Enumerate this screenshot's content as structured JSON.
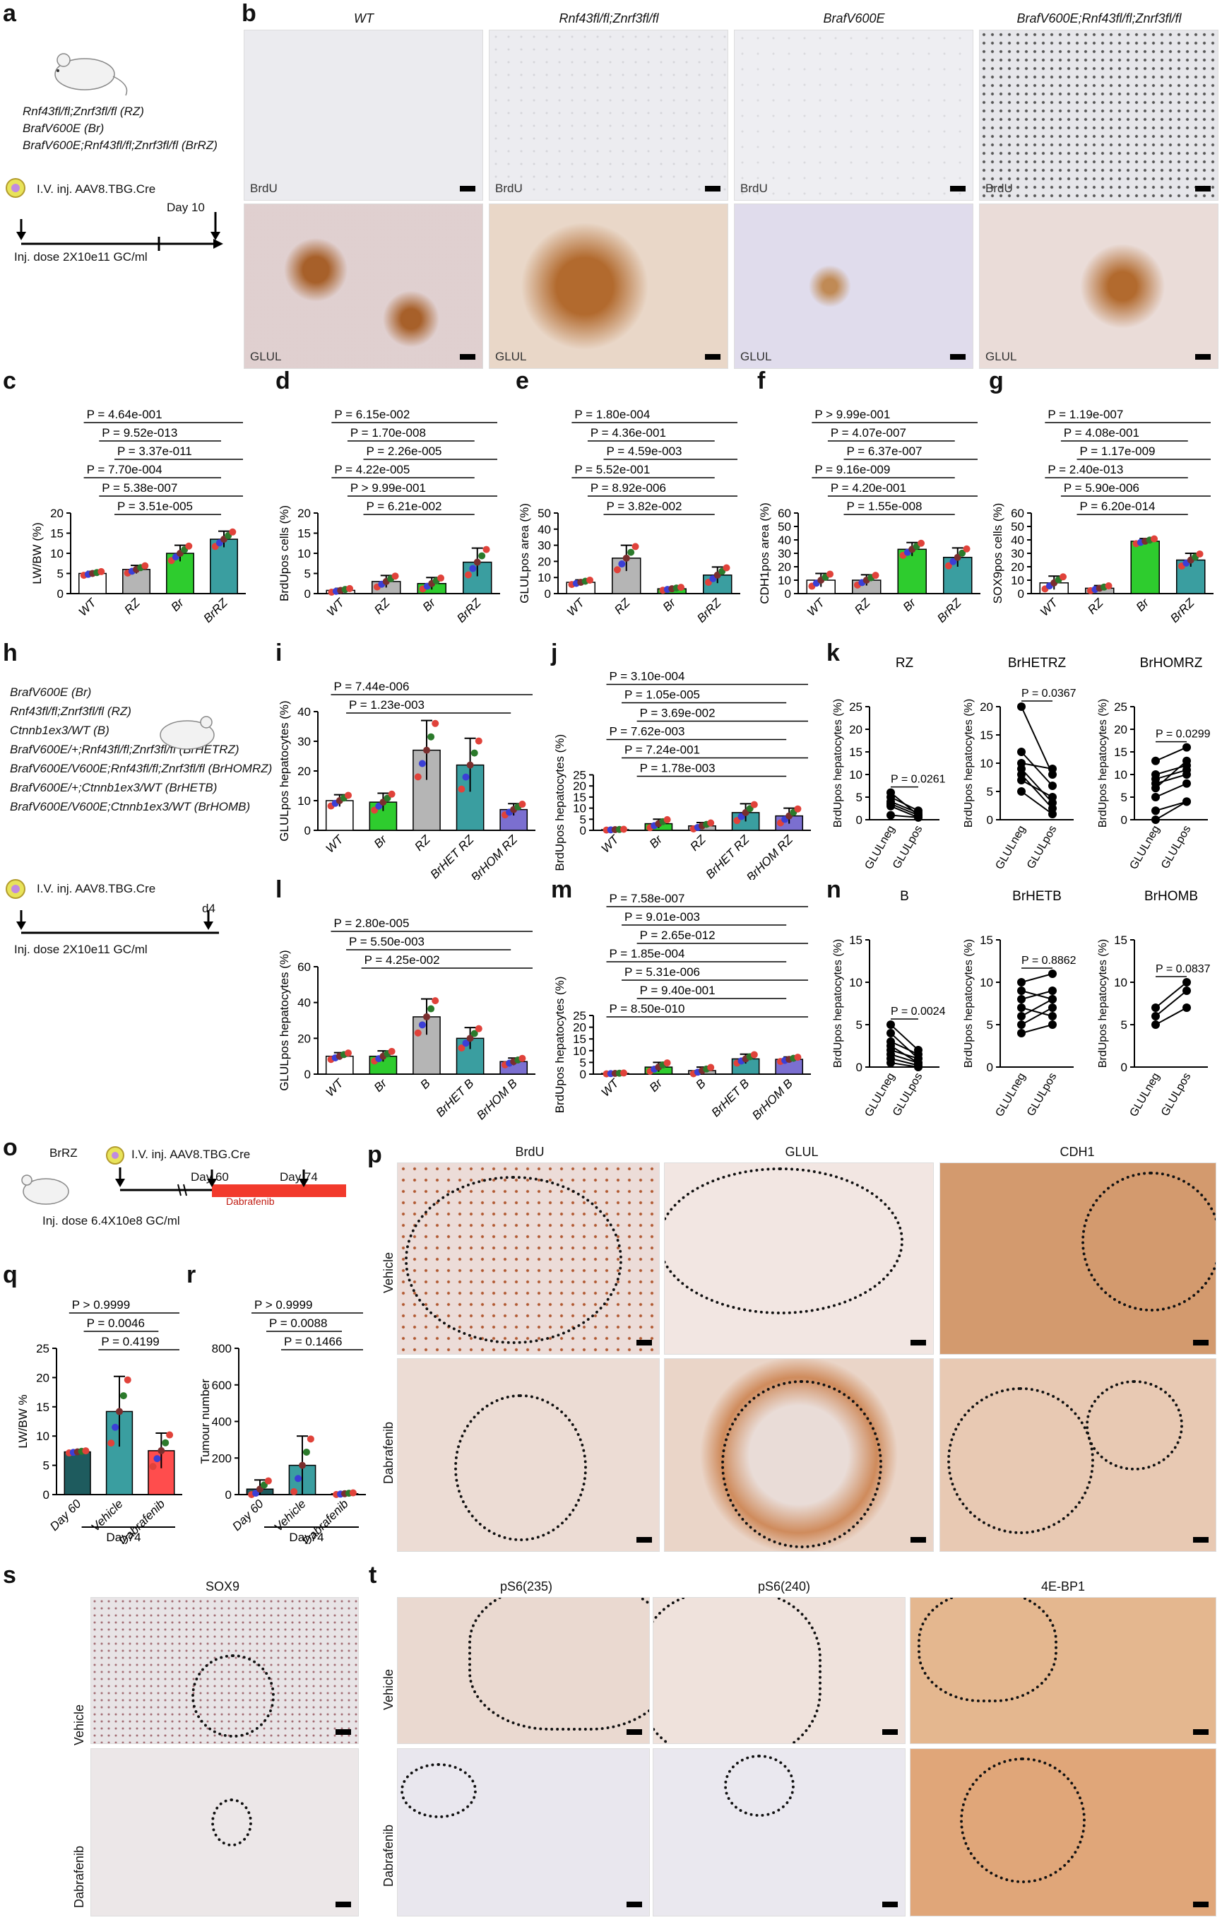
{
  "panel_letters": {
    "a": "a",
    "b": "b",
    "c": "c",
    "d": "d",
    "e": "e",
    "f": "f",
    "g": "g",
    "h": "h",
    "i": "i",
    "j": "j",
    "k": "k",
    "l": "l",
    "m": "m",
    "n": "n",
    "o": "o",
    "p": "p",
    "q": "q",
    "r": "r",
    "s": "s",
    "t": "t"
  },
  "panel_a": {
    "genotype_lines": [
      "Rnf43fl/fl;Znrf3fl/fl (RZ)",
      "BrafV600E (Br)",
      "BrafV600E;Rnf43fl/fl;Znrf3fl/fl (BrRZ)"
    ],
    "injection": "I.V. inj. AAV8.TBG.Cre",
    "day_label": "Day 10",
    "dose": "Inj. dose 2X10e11 GC/ml"
  },
  "panel_b": {
    "columns": [
      "WT",
      "Rnf43fl/fl;Znrf3fl/fl",
      "BrafV600E",
      "BrafV600E;Rnf43fl/fl;Znrf3fl/fl"
    ],
    "row_labels": [
      "BrdU",
      "GLUL"
    ]
  },
  "panel_h": {
    "genotype_lines": [
      "BrafV600E (Br)",
      "Rnf43fl/fl;Znrf3fl/fl (RZ)",
      "Ctnnb1ex3/WT (B)",
      "BrafV600E/+;Rnf43fl/fl;Znrf3fl/fl (BrHETRZ)",
      "BrafV600E/V600E;Rnf43fl/fl;Znrf3fl/fl (BrHOMRZ)",
      "BrafV600E/+;Ctnnb1ex3/WT (BrHETB)",
      "BrafV600E/V600E;Ctnnb1ex3/WT (BrHOMB)"
    ],
    "injection": "I.V. inj. AAV8.TBG.Cre",
    "day_label": "d4",
    "dose": "Inj. dose 2X10e11 GC/ml"
  },
  "panel_o": {
    "mouse_label": "BrRZ",
    "injection": "I.V. inj. AAV8.TBG.Cre",
    "day1": "Day 60",
    "day2": "Day 74",
    "drug": "Dabrafenib",
    "dose": "Inj. dose 6.4X10e8 GC/ml"
  },
  "panel_p": {
    "columns": [
      "BrdU",
      "GLUL",
      "CDH1"
    ],
    "rows": [
      "Vehicle",
      "Dabrafenib"
    ]
  },
  "panel_s": {
    "column": "SOX9",
    "rows": [
      "Vehicle",
      "Dabrafenib"
    ]
  },
  "panel_t": {
    "columns": [
      "pS6(235)",
      "pS6(240)",
      "4E-BP1"
    ],
    "rows": [
      "Vehicle",
      "Dabrafenib"
    ]
  },
  "colors": {
    "grey": "#b5b5b5",
    "green": "#2ecc2e",
    "teal": "#3a9ea0",
    "dark_teal": "#1e5b5e",
    "red": "#ff4d4d",
    "tissue_brown": "#c8864a",
    "tissue_bg": "#efe7e4"
  },
  "chart_data": [
    {
      "id": "c",
      "type": "bar",
      "ylabel": "LW/BW (%)",
      "ylim": [
        0,
        20
      ],
      "yticks": [
        0,
        5,
        10,
        15,
        20
      ],
      "categories": [
        "WT",
        "RZ",
        "Br",
        "BrRZ"
      ],
      "values": [
        5,
        6,
        10,
        13.5
      ],
      "errors": [
        0.5,
        1,
        2,
        2
      ],
      "pvalues": [
        "P = 4.64e-001",
        "P = 9.52e-013",
        "P = 3.37e-011",
        "P = 7.70e-004",
        "P = 5.38e-007",
        "P = 3.51e-005"
      ]
    },
    {
      "id": "d",
      "type": "bar",
      "ylabel": "BrdUpos cells (%)",
      "ylim": [
        0,
        20
      ],
      "yticks": [
        0,
        5,
        10,
        15,
        20
      ],
      "categories": [
        "WT",
        "RZ",
        "Br",
        "BrRZ"
      ],
      "values": [
        0.8,
        3,
        2.5,
        7.8
      ],
      "errors": [
        0.5,
        1.5,
        1.5,
        3.5
      ],
      "pvalues": [
        "P = 6.15e-002",
        "P = 1.70e-008",
        "P = 2.26e-005",
        "P = 4.22e-005",
        "P > 9.99e-001",
        "P = 6.21e-002"
      ]
    },
    {
      "id": "e",
      "type": "bar",
      "ylabel": "GLULpos area (%)",
      "ylim": [
        0,
        50
      ],
      "yticks": [
        0,
        10,
        20,
        30,
        40,
        50
      ],
      "categories": [
        "WT",
        "RZ",
        "Br",
        "BrRZ"
      ],
      "values": [
        7,
        22,
        3,
        11.5
      ],
      "errors": [
        1.5,
        8,
        1,
        5
      ],
      "pvalues": [
        "P = 1.80e-004",
        "P = 4.36e-001",
        "P = 4.59e-003",
        "P = 5.52e-001",
        "P = 8.92e-006",
        "P = 3.82e-002"
      ]
    },
    {
      "id": "f",
      "type": "bar",
      "ylabel": "CDH1pos area (%)",
      "ylim": [
        0,
        60
      ],
      "yticks": [
        0,
        10,
        20,
        30,
        40,
        50,
        60
      ],
      "categories": [
        "WT",
        "RZ",
        "Br",
        "BrRZ"
      ],
      "values": [
        10,
        10,
        33,
        27
      ],
      "errors": [
        5,
        4,
        5,
        7
      ],
      "pvalues": [
        "P > 9.99e-001",
        "P = 4.07e-007",
        "P = 6.37e-007",
        "P = 9.16e-009",
        "P = 4.20e-001",
        "P = 1.55e-008"
      ]
    },
    {
      "id": "g",
      "type": "bar",
      "ylabel": "SOX9pos cells (%)",
      "ylim": [
        0,
        60
      ],
      "yticks": [
        0,
        10,
        20,
        30,
        40,
        50,
        60
      ],
      "categories": [
        "WT",
        "RZ",
        "Br",
        "BrRZ"
      ],
      "values": [
        8,
        4,
        39,
        25
      ],
      "errors": [
        5,
        2,
        2,
        5
      ],
      "pvalues": [
        "P = 1.19e-007",
        "P = 4.08e-001",
        "P = 1.17e-009",
        "P = 2.40e-013",
        "P = 5.90e-006",
        "P = 6.20e-014"
      ]
    },
    {
      "id": "i",
      "type": "bar",
      "ylabel": "GLULpos hepatocytes (%)",
      "ylim": [
        0,
        40
      ],
      "yticks": [
        0,
        10,
        20,
        30,
        40
      ],
      "categories": [
        "WT",
        "Br",
        "RZ",
        "BrHET RZ",
        "BrHOM RZ"
      ],
      "values": [
        10,
        9.5,
        27,
        22,
        7
      ],
      "errors": [
        2,
        3,
        10,
        9,
        2
      ],
      "pvalues": [
        "P = 7.44e-006",
        "P = 1.23e-003"
      ]
    },
    {
      "id": "j",
      "type": "bar",
      "ylabel": "BrdUpos hepatocytes (%)",
      "ylim": [
        0,
        25
      ],
      "yticks": [
        0,
        5,
        10,
        15,
        20,
        25
      ],
      "categories": [
        "WT",
        "Br",
        "RZ",
        "BrHET RZ",
        "BrHOM RZ"
      ],
      "values": [
        0.3,
        3,
        2,
        8,
        6.5
      ],
      "errors": [
        0.2,
        2,
        1.5,
        4,
        3.5
      ],
      "pvalues": [
        "P = 3.10e-004",
        "P = 1.05e-005",
        "P = 3.69e-002",
        "P = 7.62e-003",
        "P = 7.24e-001",
        "P = 1.78e-003"
      ]
    },
    {
      "id": "l",
      "type": "bar",
      "ylabel": "GLULpos hepatocytes (%)",
      "ylim": [
        0,
        60
      ],
      "yticks": [
        0,
        20,
        40,
        60
      ],
      "categories": [
        "WT",
        "Br",
        "B",
        "BrHET B",
        "BrHOM B"
      ],
      "values": [
        10,
        10,
        32,
        20,
        7
      ],
      "errors": [
        2,
        3,
        10,
        6,
        2
      ],
      "pvalues": [
        "P = 2.80e-005",
        "P = 5.50e-003",
        "P = 4.25e-002"
      ]
    },
    {
      "id": "m",
      "type": "bar",
      "ylabel": "BrdUpos hepatocytes (%)",
      "ylim": [
        0,
        25
      ],
      "yticks": [
        0,
        5,
        10,
        15,
        20,
        25
      ],
      "categories": [
        "WT",
        "Br",
        "B",
        "BrHET B",
        "BrHOM B"
      ],
      "values": [
        0.3,
        3,
        1.5,
        6.5,
        6.3
      ],
      "errors": [
        0.2,
        2,
        1.5,
        2,
        1
      ],
      "pvalues": [
        "P = 7.58e-007",
        "P = 9.01e-003",
        "P = 2.65e-012",
        "P = 1.85e-004",
        "P = 5.31e-006",
        "P = 9.40e-001",
        "P = 8.50e-010"
      ]
    },
    {
      "id": "q",
      "type": "bar",
      "ylabel": "LW/BW %",
      "ylim": [
        0,
        25
      ],
      "yticks": [
        0,
        5,
        10,
        15,
        20,
        25
      ],
      "categories": [
        "Day 60",
        "Vehicle",
        "Dabrafenib"
      ],
      "values": [
        7.3,
        14.2,
        7.5
      ],
      "errors": [
        0.2,
        6,
        3
      ],
      "group_label": "Day74",
      "pvalues": [
        "P > 0.9999",
        "P = 0.0046",
        "P = 0.4199"
      ]
    },
    {
      "id": "r",
      "type": "bar",
      "ylabel": "Tumour number",
      "ylim": [
        0,
        800
      ],
      "yticks": [
        0,
        200,
        400,
        600,
        800
      ],
      "categories": [
        "Day 60",
        "Vehicle",
        "Dabrafenib"
      ],
      "values": [
        30,
        160,
        5
      ],
      "errors": [
        50,
        160,
        5
      ],
      "group_label": "Day74",
      "pvalues": [
        "P > 0.9999",
        "P = 0.0088",
        "P = 0.1466"
      ]
    }
  ],
  "paired_data": [
    {
      "id": "k1",
      "title": "RZ",
      "ylabel": "BrdUpos hepatocytes (%)",
      "ylim": [
        0,
        25
      ],
      "yticks": [
        0,
        5,
        10,
        15,
        20,
        25
      ],
      "categories": [
        "GLULneg",
        "GLULpos"
      ],
      "pvalue": "P = 0.0261",
      "pairs": [
        [
          6,
          1
        ],
        [
          5,
          2
        ],
        [
          4,
          1.5
        ],
        [
          3.5,
          1
        ],
        [
          3,
          0.5
        ],
        [
          1,
          0.5
        ]
      ]
    },
    {
      "id": "k2",
      "title": "BrHETRZ",
      "ylabel": "BrdUpos hepatocytes (%)",
      "ylim": [
        0,
        20
      ],
      "yticks": [
        0,
        5,
        10,
        15,
        20
      ],
      "categories": [
        "GLULneg",
        "GLULpos"
      ],
      "pvalue": "P = 0.0367",
      "pairs": [
        [
          20,
          8
        ],
        [
          12,
          6
        ],
        [
          10,
          9
        ],
        [
          9,
          3
        ],
        [
          8,
          2
        ],
        [
          7,
          4
        ],
        [
          5,
          1
        ]
      ]
    },
    {
      "id": "k3",
      "title": "BrHOMRZ",
      "ylabel": "BrdUpos hepatocytes (%)",
      "ylim": [
        0,
        25
      ],
      "yticks": [
        0,
        5,
        10,
        15,
        20,
        25
      ],
      "categories": [
        "GLULneg",
        "GLULpos"
      ],
      "pvalue": "P = 0.0299",
      "pairs": [
        [
          13,
          16
        ],
        [
          10,
          12
        ],
        [
          9,
          11
        ],
        [
          8,
          10
        ],
        [
          7,
          13
        ],
        [
          5,
          8
        ],
        [
          2,
          4
        ],
        [
          0,
          4
        ]
      ]
    },
    {
      "id": "n1",
      "title": "B",
      "ylabel": "BrdUpos hepatocytes (%)",
      "ylim": [
        0,
        15
      ],
      "yticks": [
        0,
        5,
        10,
        15
      ],
      "categories": [
        "GLULneg",
        "GLULpos"
      ],
      "pvalue": "P = 0.0024",
      "pairs": [
        [
          5,
          2
        ],
        [
          4,
          1
        ],
        [
          3,
          1.5
        ],
        [
          2.5,
          0.5
        ],
        [
          2,
          1
        ],
        [
          1.5,
          0.5
        ],
        [
          1,
          0.2
        ],
        [
          0.5,
          0
        ]
      ]
    },
    {
      "id": "n2",
      "title": "BrHETB",
      "ylabel": "BrdUpos hepatocytes (%)",
      "ylim": [
        0,
        15
      ],
      "yticks": [
        0,
        5,
        10,
        15
      ],
      "categories": [
        "GLULneg",
        "GLULpos"
      ],
      "pvalue": "P = 0.8862",
      "pairs": [
        [
          10,
          11
        ],
        [
          9,
          8
        ],
        [
          8,
          9
        ],
        [
          7,
          6
        ],
        [
          6,
          8
        ],
        [
          5,
          7
        ],
        [
          4,
          5
        ]
      ]
    },
    {
      "id": "n3",
      "title": "BrHOMB",
      "ylabel": "BrdUpos hepatocytes (%)",
      "ylim": [
        0,
        15
      ],
      "yticks": [
        0,
        5,
        10,
        15
      ],
      "categories": [
        "GLULneg",
        "GLULpos"
      ],
      "pvalue": "P = 0.0837",
      "pairs": [
        [
          7,
          10
        ],
        [
          6,
          9
        ],
        [
          5,
          7
        ]
      ]
    }
  ]
}
